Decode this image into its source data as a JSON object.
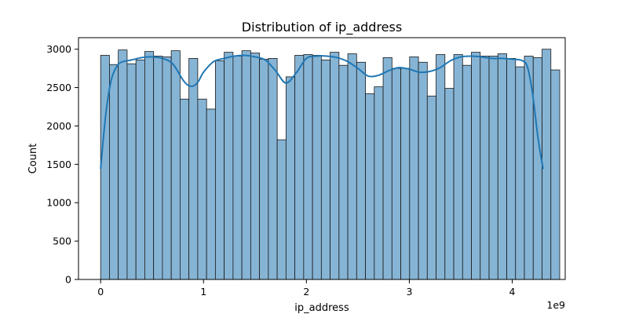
{
  "chart_data": {
    "type": "bar",
    "title": "Distribution of ip_address",
    "xlabel": "ip_address",
    "ylabel": "Count",
    "x_offset_label": "1e9",
    "xlim": [
      -0.215,
      4.515
    ],
    "ylim": [
      0,
      3150
    ],
    "x_ticks": [
      0,
      1,
      2,
      3,
      4
    ],
    "x_tick_labels": [
      "0",
      "1",
      "2",
      "3",
      "4"
    ],
    "y_ticks": [
      0,
      500,
      1000,
      1500,
      2000,
      2500,
      3000
    ],
    "y_tick_labels": [
      "0",
      "500",
      "1000",
      "1500",
      "2000",
      "2500",
      "3000"
    ],
    "bin_start": 0,
    "bin_width": 0.0858,
    "values": [
      2920,
      2800,
      2990,
      2810,
      2860,
      2970,
      2910,
      2900,
      2980,
      2350,
      2880,
      2350,
      2220,
      2850,
      2960,
      2910,
      2980,
      2950,
      2870,
      2880,
      1820,
      2640,
      2920,
      2930,
      2920,
      2860,
      2960,
      2790,
      2940,
      2830,
      2420,
      2510,
      2890,
      2750,
      2750,
      2900,
      2830,
      2390,
      2930,
      2490,
      2930,
      2790,
      2960,
      2910,
      2910,
      2940,
      2880,
      2770,
      2910,
      2890,
      3000,
      2730
    ],
    "kde": {
      "x": [
        0,
        0.05,
        0.1,
        0.15,
        0.2,
        0.3,
        0.4,
        0.5,
        0.6,
        0.7,
        0.8,
        0.85,
        0.9,
        0.95,
        1.0,
        1.1,
        1.2,
        1.3,
        1.4,
        1.5,
        1.6,
        1.7,
        1.8,
        1.9,
        2.0,
        2.1,
        2.2,
        2.3,
        2.4,
        2.5,
        2.6,
        2.7,
        2.8,
        2.9,
        3.0,
        3.1,
        3.2,
        3.3,
        3.4,
        3.5,
        3.6,
        3.7,
        3.8,
        3.9,
        4.0,
        4.1,
        4.15,
        4.2,
        4.25,
        4.3
      ],
      "y": [
        1440,
        2150,
        2580,
        2760,
        2830,
        2860,
        2890,
        2900,
        2880,
        2810,
        2600,
        2530,
        2520,
        2580,
        2700,
        2840,
        2880,
        2910,
        2920,
        2900,
        2860,
        2720,
        2560,
        2690,
        2880,
        2910,
        2910,
        2890,
        2840,
        2750,
        2650,
        2660,
        2720,
        2760,
        2740,
        2700,
        2710,
        2760,
        2850,
        2900,
        2910,
        2900,
        2880,
        2880,
        2870,
        2850,
        2760,
        2400,
        1850,
        1440
      ]
    },
    "colors": {
      "bar_fill": "#86b4d5",
      "bar_edge": "#1a1a1a",
      "kde_line": "#1f77b4"
    },
    "grid": false,
    "legend": "none"
  }
}
